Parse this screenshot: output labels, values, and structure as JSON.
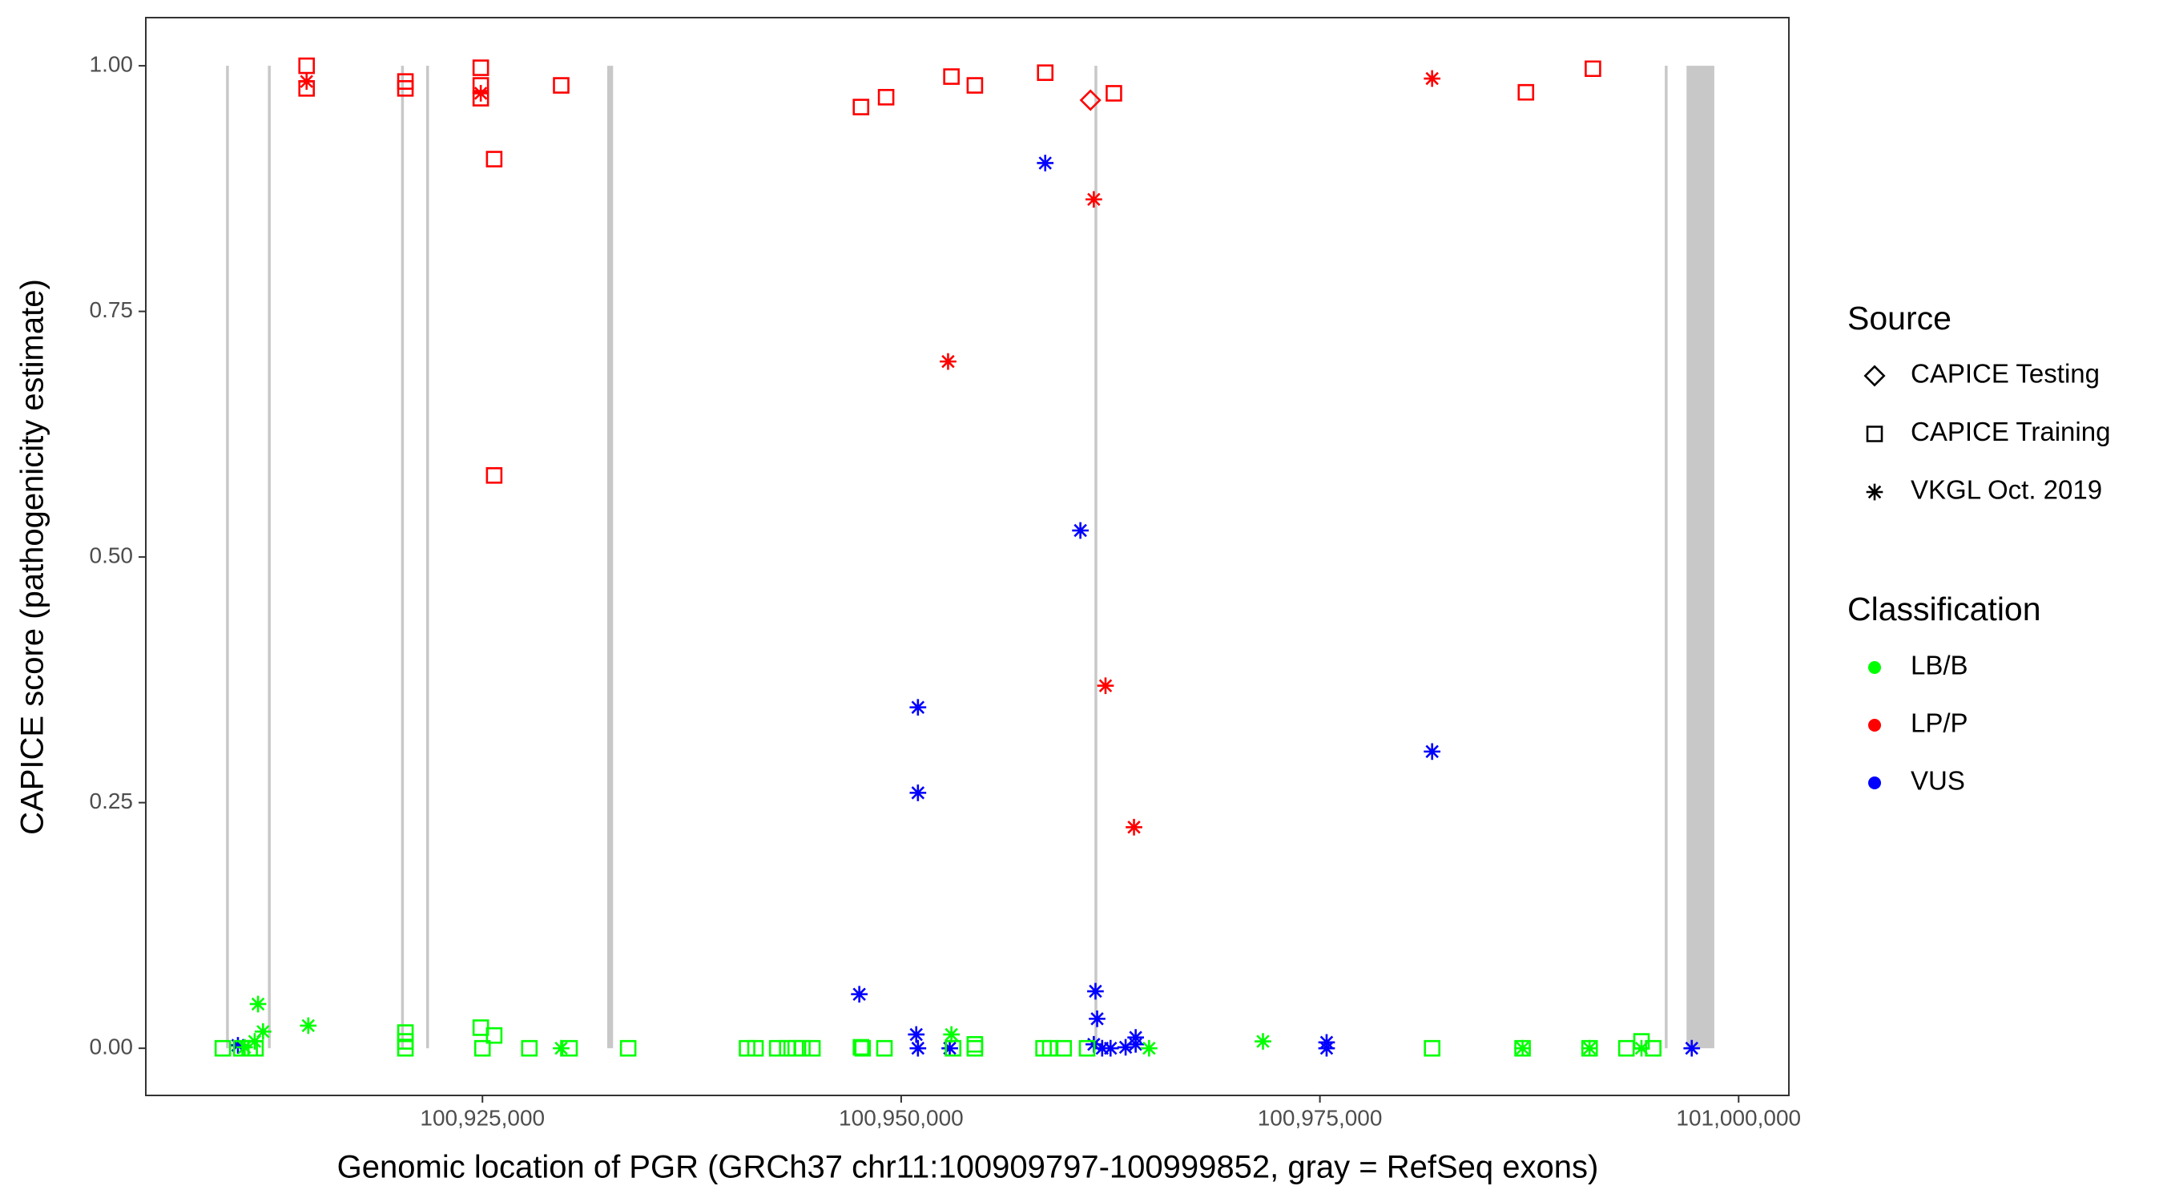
{
  "chart_data": {
    "type": "scatter",
    "xlabel": "Genomic location of PGR (GRCh37 chr11:100909797-100999852, gray = RefSeq exons)",
    "ylabel": "CAPICE score (pathogenicity estimate)",
    "xlim": [
      100904900,
      101003000
    ],
    "ylim": [
      -0.048,
      1.049
    ],
    "xticks": [
      {
        "value": 100925000,
        "label": "100,925,000"
      },
      {
        "value": 100950000,
        "label": "100,950,000"
      },
      {
        "value": 100975000,
        "label": "100,975,000"
      },
      {
        "value": 101000000,
        "label": "101,000,000"
      }
    ],
    "yticks": [
      {
        "value": 0,
        "label": "0.00"
      },
      {
        "value": 0.25,
        "label": "0.25"
      },
      {
        "value": 0.5,
        "label": "0.50"
      },
      {
        "value": 0.75,
        "label": "0.75"
      },
      {
        "value": 1,
        "label": "1.00"
      }
    ],
    "exon_color": "#c8c8c8",
    "exons": [
      [
        100909700,
        100909850
      ],
      [
        100912200,
        100912350
      ],
      [
        100920150,
        100920300
      ],
      [
        100921650,
        100921800
      ],
      [
        100932450,
        100932800
      ],
      [
        100961550,
        100961700
      ],
      [
        100995600,
        100995750
      ],
      [
        100996891,
        100998547
      ]
    ],
    "legend": {
      "source": {
        "title": "Source",
        "items": [
          {
            "label": "CAPICE Testing",
            "shape": "diamond"
          },
          {
            "label": "CAPICE Training",
            "shape": "square"
          },
          {
            "label": "VKGL Oct. 2019",
            "shape": "asterisk"
          }
        ]
      },
      "classification": {
        "title": "Classification",
        "items": [
          {
            "label": "LB/B",
            "color": "#00ff00"
          },
          {
            "label": "LP/P",
            "color": "#ff0000"
          },
          {
            "label": "VUS",
            "color": "#0000ff"
          }
        ]
      }
    },
    "series": [
      {
        "source": "CAPICE Training",
        "classification": "LP/P",
        "x": [
          100914500,
          100914500,
          100920400,
          100920400,
          100924900,
          100924900,
          100924900,
          100925700,
          100929700,
          100947600,
          100949100,
          100953000,
          100954400,
          100958600,
          100962700,
          100987300,
          100991300,
          100925700
        ],
        "y": [
          1.0,
          0.977,
          0.984,
          0.977,
          0.998,
          0.98,
          0.967,
          0.905,
          0.98,
          0.958,
          0.968,
          0.989,
          0.98,
          0.993,
          0.972,
          0.973,
          0.997,
          0.583
        ]
      },
      {
        "source": "CAPICE Testing",
        "classification": "LP/P",
        "x": [
          100961300
        ],
        "y": [
          0.965
        ]
      },
      {
        "source": "VKGL Oct. 2019",
        "classification": "LP/P",
        "x": [
          100914500,
          100924900,
          100952800,
          100961500,
          100962200,
          100963900,
          100981700
        ],
        "y": [
          0.984,
          0.972,
          0.699,
          0.864,
          0.369,
          0.225,
          0.987
        ]
      },
      {
        "source": "VKGL Oct. 2019",
        "classification": "VUS",
        "x": [
          100958600,
          100960700,
          100951000,
          100951000,
          100981700,
          100947500,
          100961600,
          100961700,
          100950900,
          100951000,
          100952900,
          100961500,
          100962000,
          100962500,
          100963400,
          100964000,
          100964000,
          100975400,
          100975400,
          100997200,
          100910400
        ],
        "y": [
          0.901,
          0.527,
          0.347,
          0.26,
          0.302,
          0.055,
          0.058,
          0.03,
          0.014,
          0,
          0,
          0.004,
          0,
          0,
          0.001,
          0.011,
          0.004,
          0.006,
          0,
          0,
          0.003
        ]
      },
      {
        "source": "CAPICE Training",
        "classification": "LB/B",
        "x": [
          100909500,
          100910600,
          100911100,
          100911450,
          100920400,
          100920400,
          100920400,
          100924900,
          100925700,
          100925000,
          100927800,
          100930200,
          100933700,
          100940800,
          100941300,
          100942600,
          100943200,
          100943700,
          100944100,
          100944700,
          100947600,
          100947700,
          100949000,
          100953100,
          100954400,
          100954400,
          100958500,
          100958900,
          100959700,
          100961100,
          100981700,
          100987100,
          100991100,
          100993300,
          100994200,
          100994900
        ],
        "y": [
          0,
          0,
          0,
          0,
          0.016,
          0.007,
          0,
          0.021,
          0.013,
          0,
          0,
          0,
          0,
          0,
          0,
          0,
          0,
          0,
          0,
          0,
          0.001,
          0,
          0,
          0,
          0.004,
          0,
          0,
          0,
          0,
          0,
          0,
          0,
          0,
          0,
          0.007,
          0
        ]
      },
      {
        "source": "VKGL Oct. 2019",
        "classification": "LB/B",
        "x": [
          100911600,
          100911900,
          100911400,
          100910800,
          100914600,
          100929700,
          100953000,
          100964800,
          100971600,
          100987100,
          100991100,
          100994200
        ],
        "y": [
          0.045,
          0.017,
          0.007,
          0.001,
          0.023,
          0,
          0.014,
          0,
          0.007,
          0,
          0,
          0
        ]
      }
    ]
  }
}
